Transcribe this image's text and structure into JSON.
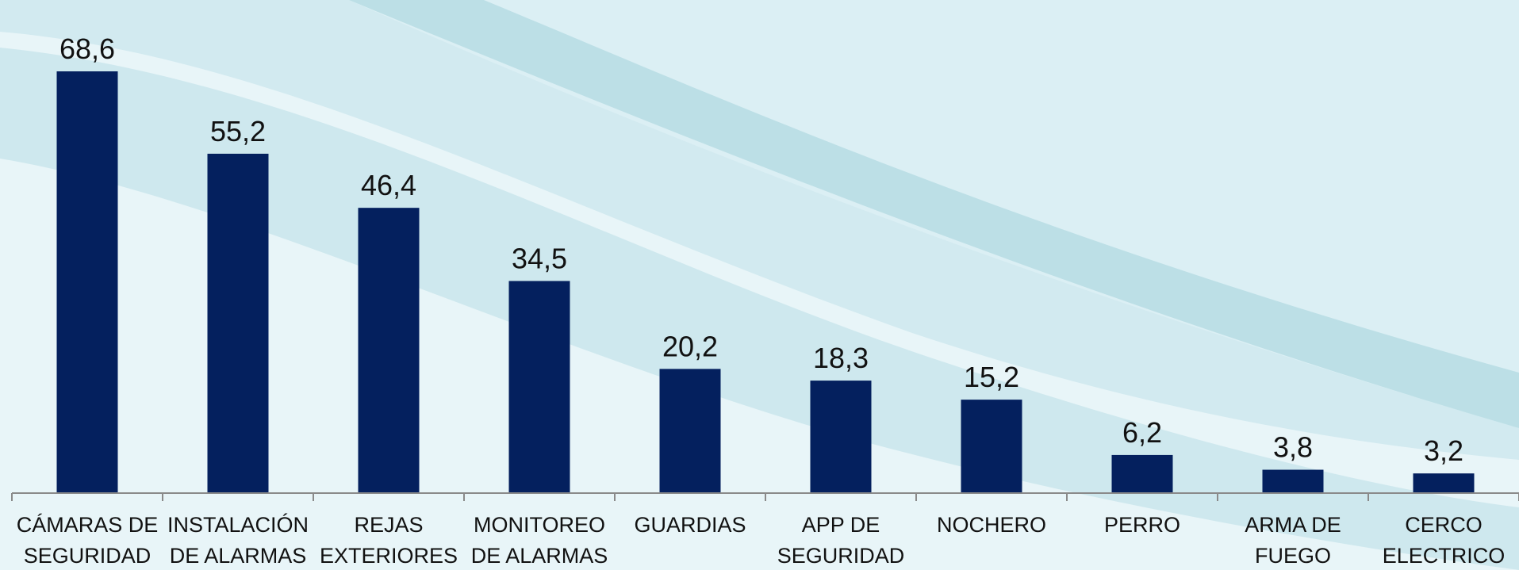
{
  "chart_data": {
    "type": "bar",
    "categories": [
      "CÁMARAS DE\nSEGURIDAD",
      "INSTALACIÓN\nDE ALARMAS",
      "REJAS\nEXTERIORES",
      "MONITOREO\nDE ALARMAS",
      "GUARDIAS",
      "APP DE\nSEGURIDAD",
      "NOCHERO",
      "PERRO",
      "ARMA DE\nFUEGO",
      "CERCO\nELECTRICO"
    ],
    "values": [
      68.6,
      55.2,
      46.4,
      34.5,
      20.2,
      18.3,
      15.2,
      6.2,
      3.8,
      3.2
    ],
    "value_labels": [
      "68,6",
      "55,2",
      "46,4",
      "34,5",
      "20,2",
      "18,3",
      "15,2",
      "6,2",
      "3,8",
      "3,2"
    ],
    "color": "#04205e"
  }
}
